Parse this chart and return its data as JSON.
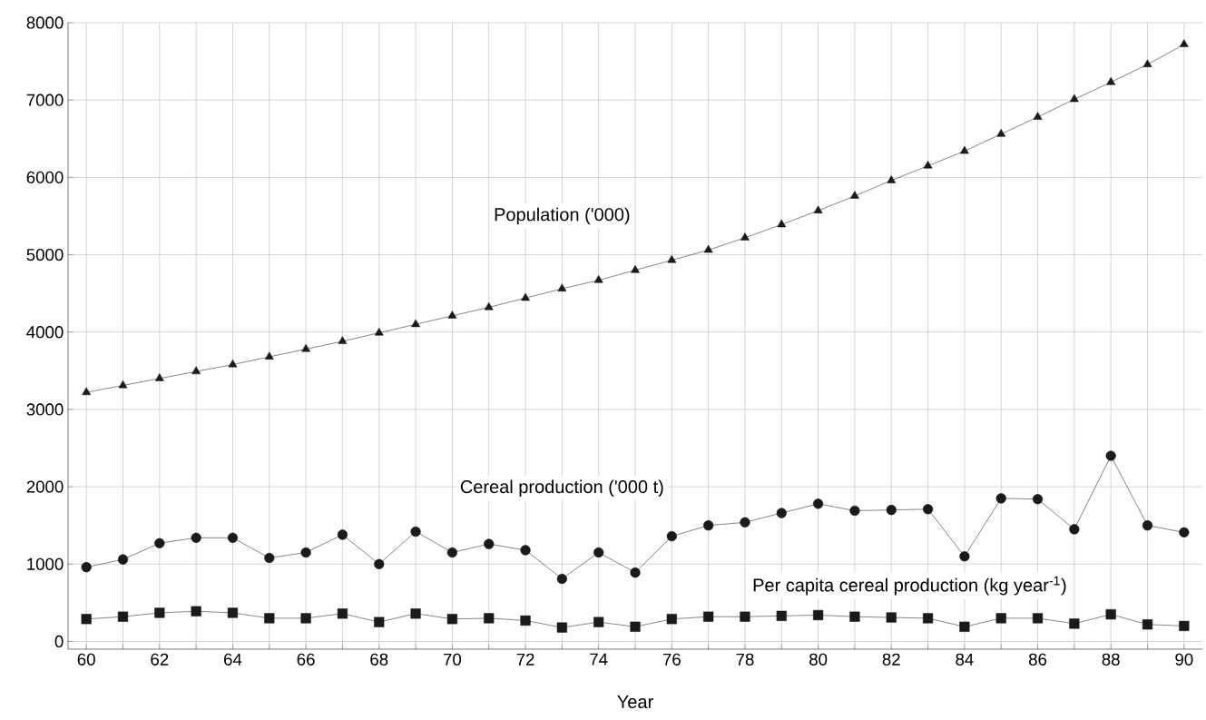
{
  "chart_data": {
    "type": "line",
    "xlabel": "Year",
    "x": [
      60,
      61,
      62,
      63,
      64,
      65,
      66,
      67,
      68,
      69,
      70,
      71,
      72,
      73,
      74,
      75,
      76,
      77,
      78,
      79,
      80,
      81,
      82,
      83,
      84,
      85,
      86,
      87,
      88,
      89,
      90
    ],
    "series": [
      {
        "name": "Population ('000)",
        "color": "#1a1a1a",
        "marker": "triangle",
        "values": [
          3220,
          3310,
          3400,
          3490,
          3580,
          3680,
          3780,
          3880,
          3990,
          4100,
          4210,
          4320,
          4440,
          4560,
          4670,
          4800,
          4930,
          5060,
          5220,
          5390,
          5570,
          5760,
          5960,
          6150,
          6340,
          6560,
          6780,
          7010,
          7230,
          7460,
          7720
        ]
      },
      {
        "name": "Cereal production ('000 t)",
        "color": "#1a1a1a",
        "marker": "circle",
        "values": [
          960,
          1060,
          1270,
          1340,
          1340,
          1080,
          1150,
          1380,
          1000,
          1420,
          1150,
          1260,
          1180,
          810,
          1150,
          890,
          1360,
          1500,
          1540,
          1660,
          1780,
          1690,
          1700,
          1710,
          1100,
          1850,
          1840,
          1450,
          2400,
          1500,
          1410
        ]
      },
      {
        "name": "Per capita cereal production (kg year$^{-1}$)",
        "color": "#1a1a1a",
        "marker": "square",
        "values": [
          290,
          320,
          370,
          390,
          370,
          300,
          300,
          360,
          250,
          360,
          290,
          300,
          270,
          180,
          250,
          190,
          290,
          320,
          320,
          330,
          340,
          320,
          310,
          300,
          190,
          300,
          300,
          230,
          350,
          220,
          200
        ]
      }
    ],
    "xlim": [
      59.5,
      90.5
    ],
    "ylim": [
      -100,
      8000
    ],
    "xticks": [
      60,
      {
        "value": 61,
        "label": null
      },
      62,
      {
        "value": 63,
        "label": null
      },
      64,
      {
        "value": 65,
        "label": null
      },
      66,
      {
        "value": 67,
        "label": null
      },
      68,
      {
        "value": 69,
        "label": null
      },
      70,
      {
        "value": 71,
        "label": null
      },
      72,
      {
        "value": 73,
        "label": null
      },
      74,
      {
        "value": 75,
        "label": null
      },
      76,
      {
        "value": 77,
        "label": null
      },
      78,
      {
        "value": 79,
        "label": null
      },
      80,
      {
        "value": 81,
        "label": null
      },
      82,
      {
        "value": 83,
        "label": null
      },
      84,
      {
        "value": 85,
        "label": null
      },
      86,
      {
        "value": 87,
        "label": null
      },
      88,
      {
        "value": 89,
        "label": null
      },
      90
    ],
    "yticks": [
      0,
      1000,
      2000,
      3000,
      4000,
      5000,
      6000,
      7000,
      8000
    ],
    "grid": true,
    "line_style": "solid"
  }
}
